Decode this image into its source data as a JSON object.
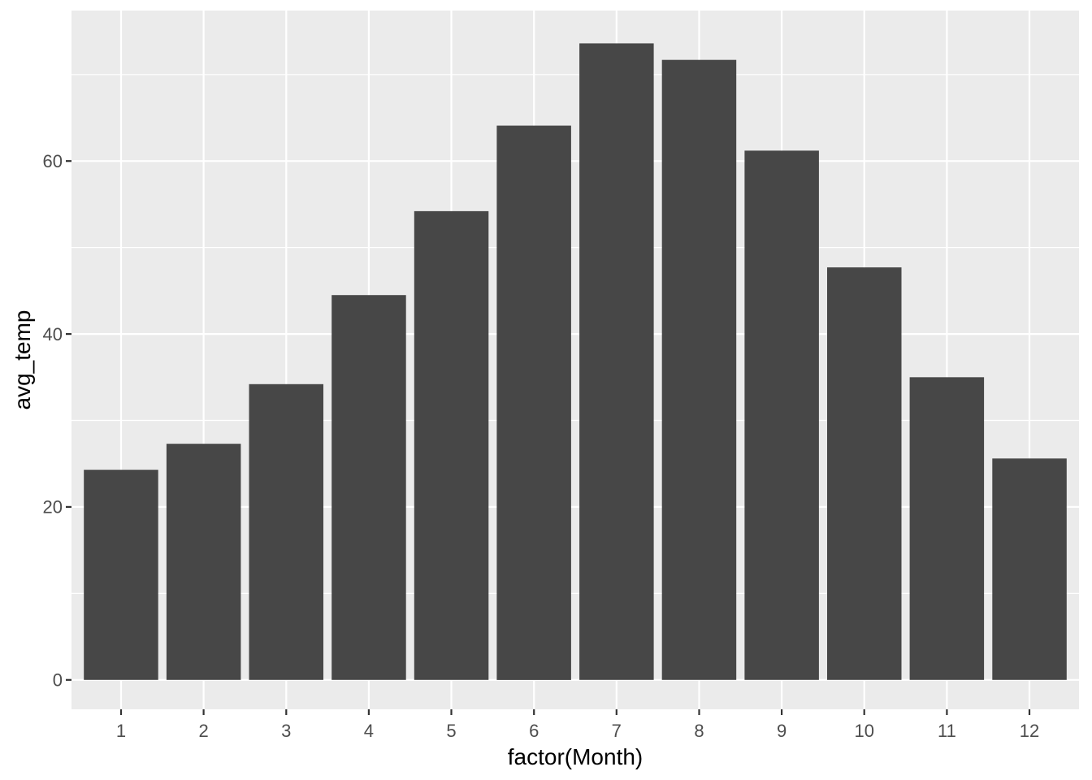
{
  "chart_data": {
    "type": "bar",
    "title": "",
    "xlabel": "factor(Month)",
    "ylabel": "avg_temp",
    "categories": [
      "1",
      "2",
      "3",
      "4",
      "5",
      "6",
      "7",
      "8",
      "9",
      "10",
      "11",
      "12"
    ],
    "values": [
      24.3,
      27.3,
      34.2,
      44.5,
      54.2,
      64.1,
      73.6,
      71.7,
      61.2,
      47.7,
      35.0,
      25.6
    ],
    "series_name": "avg_temp",
    "y_major_ticks": [
      0,
      20,
      40,
      60
    ],
    "y_minor_gridlines": [
      10,
      30,
      50,
      70
    ],
    "ylim": [
      -3.4,
      77.4
    ],
    "bar_relative_width": 0.9,
    "x_expand_categories": 0.6,
    "grid": "horizontal major+minor, vertical major at category centers",
    "legend_position": "none",
    "colors": {
      "bar_fill": "#474747",
      "panel_background": "#EBEBEB",
      "gridline": "#FFFFFF",
      "tick_label": "#4D4D4D",
      "axis_title": "#000000",
      "tick_mark": "#333333",
      "plot_background": "#FFFFFF"
    }
  }
}
